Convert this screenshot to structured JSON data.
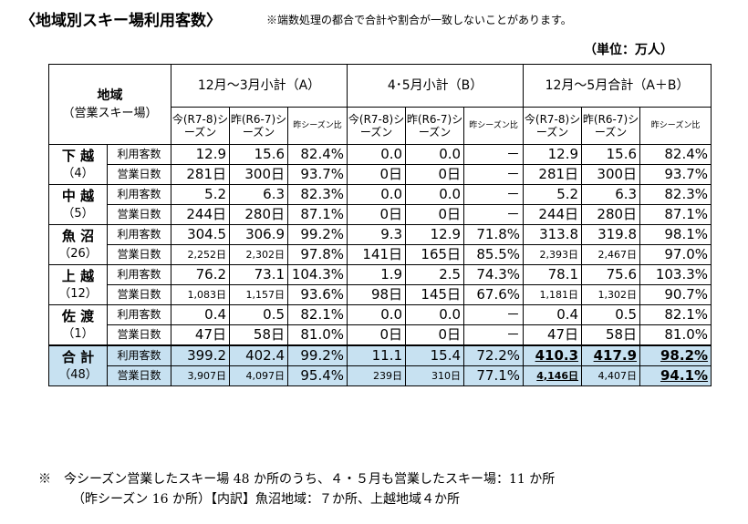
{
  "title": "〈地域別スキー場利用客数〉",
  "note_top": "※端数処理の都合で合計や割合が一致しないことがあります。",
  "unit": "（単位：万人）",
  "header": {
    "region_label": "地域",
    "region_sub": "（営業スキー場）",
    "group_a": "12月～3月小計（A）",
    "group_b": "4･5月小計（B）",
    "group_ab": "12月～5月合計（A＋B）",
    "cur": "今(R7-8)シーズン",
    "prev": "昨(R6-7)シーズン",
    "ratio": "昨シーズン比"
  },
  "metrics": {
    "visitors": "利用客数",
    "days": "営業日数"
  },
  "regions": [
    {
      "name": "下 越",
      "count": "（4）",
      "visitors": [
        "12.9",
        "15.6",
        "82.4%",
        "0.0",
        "0.0",
        "－",
        "12.9",
        "15.6",
        "82.4%"
      ],
      "days": [
        "281日",
        "300日",
        "93.7%",
        "0日",
        "0日",
        "－",
        "281日",
        "300日",
        "93.7%"
      ]
    },
    {
      "name": "中 越",
      "count": "（5）",
      "visitors": [
        "5.2",
        "6.3",
        "82.3%",
        "0.0",
        "0.0",
        "－",
        "5.2",
        "6.3",
        "82.3%"
      ],
      "days": [
        "244日",
        "280日",
        "87.1%",
        "0日",
        "0日",
        "－",
        "244日",
        "280日",
        "87.1%"
      ]
    },
    {
      "name": "魚 沼",
      "count": "（26）",
      "visitors": [
        "304.5",
        "306.9",
        "99.2%",
        "9.3",
        "12.9",
        "71.8%",
        "313.8",
        "319.8",
        "98.1%"
      ],
      "days": [
        "2,252日",
        "2,302日",
        "97.8%",
        "141日",
        "165日",
        "85.5%",
        "2,393日",
        "2,467日",
        "97.0%"
      ]
    },
    {
      "name": "上 越",
      "count": "（12）",
      "visitors": [
        "76.2",
        "73.1",
        "104.3%",
        "1.9",
        "2.5",
        "74.3%",
        "78.1",
        "75.6",
        "103.3%"
      ],
      "days": [
        "1,083日",
        "1,157日",
        "93.6%",
        "98日",
        "145日",
        "67.6%",
        "1,181日",
        "1,302日",
        "90.7%"
      ]
    },
    {
      "name": "佐 渡",
      "count": "（1）",
      "visitors": [
        "0.4",
        "0.5",
        "82.1%",
        "0.0",
        "0.0",
        "－",
        "0.4",
        "0.5",
        "82.1%"
      ],
      "days": [
        "47日",
        "58日",
        "81.0%",
        "0日",
        "0日",
        "－",
        "47日",
        "58日",
        "81.0%"
      ]
    }
  ],
  "total": {
    "name": "合 計",
    "count": "（48）",
    "visitors": [
      "399.2",
      "402.4",
      "99.2%",
      "11.1",
      "15.4",
      "72.2%",
      "410.3",
      "417.9",
      "98.2%"
    ],
    "days": [
      "3,907日",
      "4,097日",
      "95.4%",
      "239日",
      "310日",
      "77.1%",
      "4,146日",
      "4,407日",
      "94.1%"
    ]
  },
  "footnote": {
    "line1": "※　今シーズン営業したスキー場 48 か所のうち、４・５月も営業したスキー場：11 か所",
    "line2": "（昨シーズン 16 か所）【内訳】魚沼地域：７か所、上越地域４か所"
  }
}
